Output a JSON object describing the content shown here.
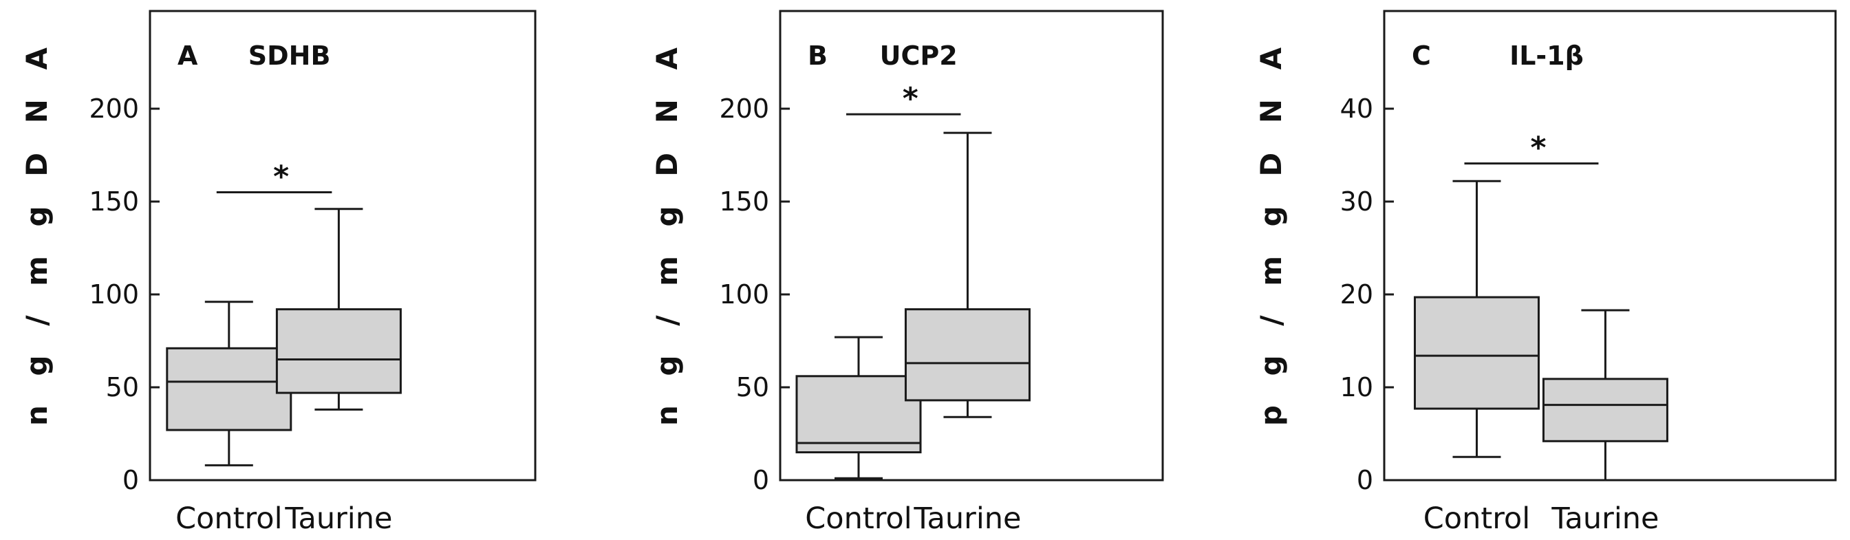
{
  "figure": {
    "colors": {
      "box_fill": "#d3d3d3",
      "stroke": "#1a1a1a",
      "background": "#ffffff"
    }
  },
  "chart_data": [
    {
      "type": "box",
      "panel": "A",
      "title": "SDHB",
      "ylabel": "n g / m g  D N A",
      "ylim": [
        0,
        200
      ],
      "yticks": [
        0,
        50,
        100,
        150,
        200
      ],
      "categories": [
        "Control",
        "Taurine"
      ],
      "boxes": [
        {
          "category": "Control",
          "whisker_low": 8,
          "q1": 27,
          "median": 53,
          "q3": 71,
          "whisker_high": 96
        },
        {
          "category": "Taurine",
          "whisker_low": 38,
          "q1": 47,
          "median": 65,
          "q3": 92,
          "whisker_high": 146
        }
      ],
      "significance": {
        "symbol": "*",
        "level": 155
      }
    },
    {
      "type": "box",
      "panel": "B",
      "title": "UCP2",
      "ylabel": "n g / m g  D N A",
      "ylim": [
        0,
        200
      ],
      "yticks": [
        0,
        50,
        100,
        150,
        200
      ],
      "categories": [
        "Control",
        "Taurine"
      ],
      "boxes": [
        {
          "category": "Control",
          "whisker_low": 1,
          "q1": 15,
          "median": 20,
          "q3": 56,
          "whisker_high": 77
        },
        {
          "category": "Taurine",
          "whisker_low": 34,
          "q1": 43,
          "median": 63,
          "q3": 92,
          "whisker_high": 187
        }
      ],
      "significance": {
        "symbol": "*",
        "level": 197
      }
    },
    {
      "type": "box",
      "panel": "C",
      "title": "IL-1β",
      "ylabel": "p g / m g  D N A",
      "ylim": [
        0,
        40
      ],
      "yticks": [
        0,
        10,
        20,
        30,
        40
      ],
      "categories": [
        "Control",
        "Taurine"
      ],
      "boxes": [
        {
          "category": "Control",
          "whisker_low": 2.5,
          "q1": 7.7,
          "median": 13.4,
          "q3": 19.7,
          "whisker_high": 32.2
        },
        {
          "category": "Taurine",
          "whisker_low": 0,
          "q1": 4.2,
          "median": 8.1,
          "q3": 10.9,
          "whisker_high": 18.3
        }
      ],
      "significance": {
        "symbol": "*",
        "level": 34.1
      }
    }
  ]
}
